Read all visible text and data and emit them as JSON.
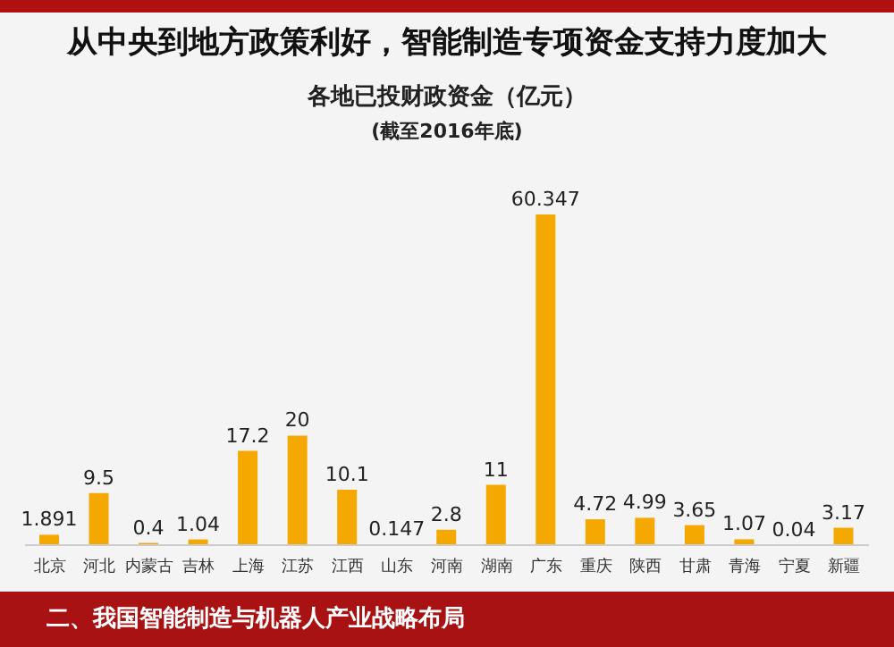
{
  "chart_data": {
    "type": "bar",
    "title": "从中央到地方政策利好，智能制造专项资金支持力度加大",
    "subtitle": "各地已投财政资金（亿元）",
    "categories": [
      "北京",
      "河北",
      "内蒙古",
      "吉林",
      "上海",
      "江苏",
      "江西",
      "山东",
      "河南",
      "湖南",
      "广东",
      "重庆",
      "陕西",
      "甘肃",
      "青海",
      "宁夏",
      "新疆"
    ],
    "values": [
      1.891,
      9.5,
      0.4,
      1.04,
      17.2,
      20,
      10.1,
      0.147,
      2.8,
      11,
      60.347,
      4.72,
      4.99,
      3.65,
      1.07,
      0.04,
      3.17
    ],
    "color": "#f5a800",
    "data_labels": true,
    "annotations": [
      "(截至2016年底)",
      "二、我国智能制造与机器人产业战略布局"
    ]
  }
}
